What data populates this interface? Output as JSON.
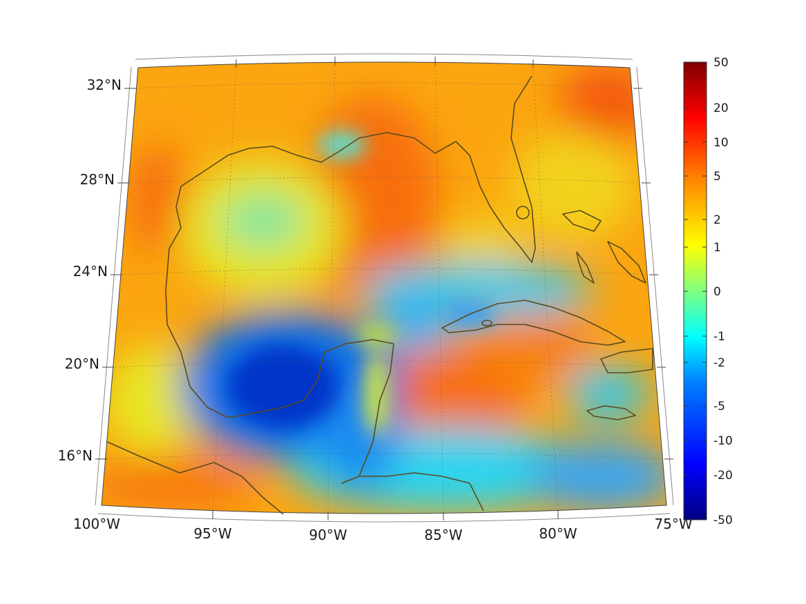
{
  "map": {
    "projection": "lambert-conformal",
    "region": "Gulf of Mexico and Caribbean",
    "lat_range": [
      14,
      33
    ],
    "lon_range": [
      -100,
      -75
    ],
    "graticule": "dotted",
    "coastline_color": "#5a4a1e",
    "lat_labels": [
      "32°N",
      "28°N",
      "24°N",
      "20°N",
      "16°N"
    ],
    "lon_labels": [
      "100°W",
      "95°W",
      "90°W",
      "85°W",
      "80°W",
      "75°W"
    ]
  },
  "colorbar": {
    "orientation": "vertical",
    "colormap": "jet",
    "ticks": [
      "50",
      "20",
      "10",
      "5",
      "2",
      "1",
      "0",
      "-1",
      "-2",
      "-5",
      "-10",
      "-20",
      "-50"
    ],
    "stops": [
      "#00007f",
      "#0000ff",
      "#007fff",
      "#00ffff",
      "#7fff7f",
      "#ffff00",
      "#ff7f00",
      "#ff0000",
      "#7f0000"
    ]
  }
}
